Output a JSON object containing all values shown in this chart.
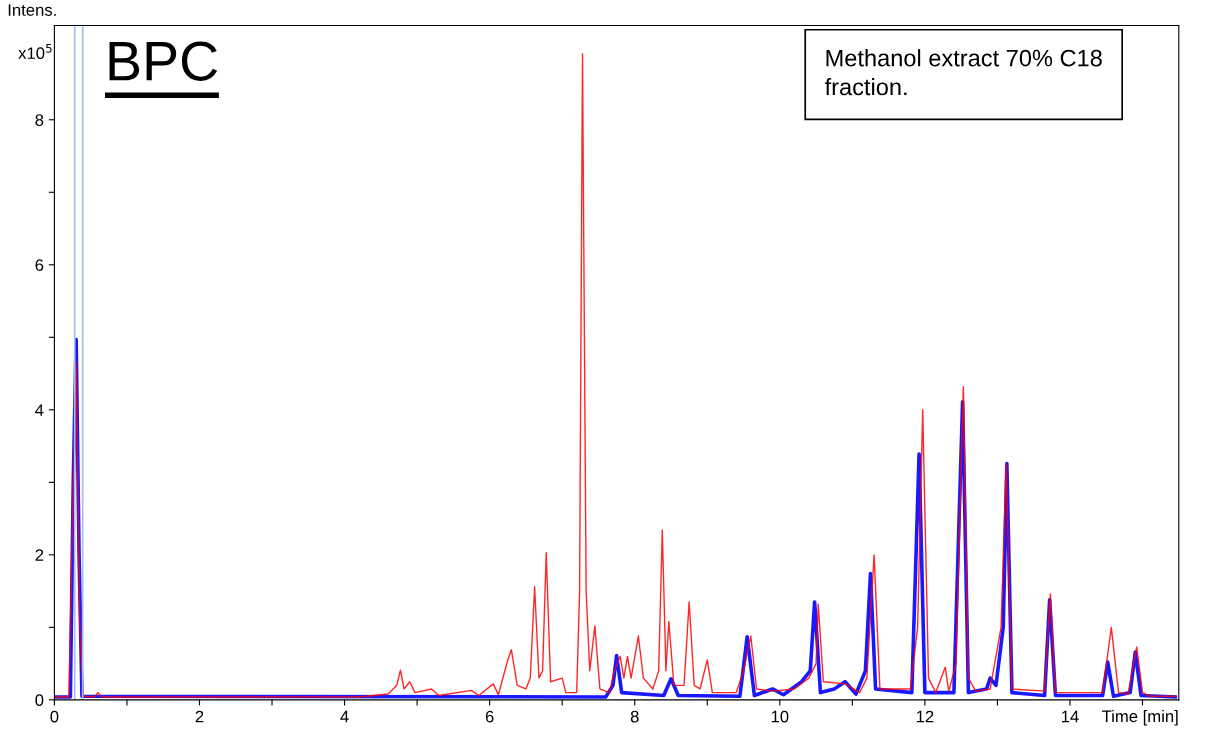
{
  "chart_data": {
    "type": "line",
    "xlabel": "Time [min]",
    "ylabel": "Intens.",
    "annotations": [
      "x10$^{5}$",
      "BPC",
      "Methanol extract 70% C18\nfraction."
    ],
    "xlim": [
      0,
      15.5
    ],
    "ylim": [
      0,
      9.3
    ],
    "xticks": [
      0,
      {
        "value": 1,
        "label": null
      },
      2,
      {
        "value": 3,
        "label": null
      },
      4,
      {
        "value": 5,
        "label": null
      },
      6,
      {
        "value": 7,
        "label": null
      },
      8,
      {
        "value": 9,
        "label": null
      },
      10,
      {
        "value": 11,
        "label": null
      },
      12,
      {
        "value": 13,
        "label": null
      },
      14,
      {
        "value": 15,
        "label": null
      }
    ],
    "yticks": [
      0,
      {
        "value": 1,
        "label": null
      },
      2,
      {
        "value": 3,
        "label": null
      },
      4,
      {
        "value": 5,
        "label": null
      },
      6,
      {
        "value": 7,
        "label": null
      },
      8
    ],
    "grid": false,
    "legend": false,
    "marker": "none",
    "line_style": "solid",
    "ref_lines": [
      {
        "axis": "x",
        "value": 0.28,
        "color": "#a0c0f0"
      },
      {
        "axis": "x",
        "value": 0.39,
        "color": "#a0c0f0"
      }
    ],
    "series": [
      {
        "color": "#0000ff",
        "x": [
          0,
          0.22,
          0.26,
          0.3,
          0.34,
          0.38,
          7.6,
          7.7,
          7.75,
          7.82,
          8.4,
          8.5,
          8.6,
          9.45,
          9.55,
          9.65,
          9.9,
          10.05,
          10.3,
          10.42,
          10.48,
          10.56,
          10.75,
          10.9,
          11.05,
          11.18,
          11.25,
          11.32,
          11.82,
          11.92,
          12.0,
          12.4,
          12.52,
          12.6,
          12.85,
          12.9,
          12.98,
          13.08,
          13.13,
          13.2,
          13.65,
          13.72,
          13.8,
          14.45,
          14.52,
          14.6,
          14.83,
          14.9,
          14.98,
          15.45
        ],
        "values": [
          0.04,
          0.04,
          3.0,
          4.97,
          2.0,
          0.05,
          0.04,
          0.2,
          0.61,
          0.1,
          0.06,
          0.29,
          0.06,
          0.05,
          0.87,
          0.06,
          0.15,
          0.07,
          0.25,
          0.4,
          1.35,
          0.1,
          0.15,
          0.25,
          0.08,
          0.4,
          1.74,
          0.15,
          0.1,
          3.39,
          0.1,
          0.1,
          4.11,
          0.1,
          0.15,
          0.3,
          0.2,
          1.0,
          3.26,
          0.1,
          0.06,
          1.38,
          0.06,
          0.06,
          0.52,
          0.05,
          0.1,
          0.66,
          0.06,
          0.04
        ]
      },
      {
        "color": "#ff0000",
        "x": [
          0,
          0.2,
          0.25,
          0.3,
          0.35,
          0.4,
          0.55,
          0.6,
          0.65,
          4.2,
          4.6,
          4.72,
          4.77,
          4.82,
          4.9,
          4.97,
          5.2,
          5.3,
          5.75,
          5.85,
          6.05,
          6.12,
          6.25,
          6.3,
          6.38,
          6.5,
          6.56,
          6.62,
          6.68,
          6.73,
          6.78,
          6.84,
          7.0,
          7.05,
          7.2,
          7.24,
          7.28,
          7.33,
          7.38,
          7.45,
          7.52,
          7.65,
          7.72,
          7.8,
          7.85,
          7.9,
          7.95,
          8.05,
          8.12,
          8.25,
          8.33,
          8.38,
          8.43,
          8.47,
          8.54,
          8.68,
          8.75,
          8.82,
          8.9,
          9.0,
          9.07,
          9.4,
          9.5,
          9.6,
          9.68,
          9.9,
          10.2,
          10.4,
          10.5,
          10.53,
          10.6,
          10.9,
          11.1,
          11.2,
          11.3,
          11.38,
          11.8,
          11.9,
          11.97,
          12.05,
          12.15,
          12.28,
          12.33,
          12.43,
          12.53,
          12.6,
          12.7,
          12.9,
          13.05,
          13.12,
          13.2,
          13.65,
          13.73,
          13.8,
          14.45,
          14.57,
          14.67,
          14.8,
          14.92,
          15.0,
          15.1,
          15.45
        ],
        "values": [
          0.04,
          0.04,
          2.5,
          4.66,
          1.0,
          0.05,
          0.04,
          0.1,
          0.04,
          0.04,
          0.08,
          0.2,
          0.41,
          0.15,
          0.25,
          0.1,
          0.15,
          0.06,
          0.13,
          0.06,
          0.22,
          0.07,
          0.55,
          0.69,
          0.2,
          0.15,
          0.3,
          1.56,
          0.3,
          0.4,
          2.03,
          0.25,
          0.3,
          0.1,
          0.1,
          1.5,
          8.91,
          1.5,
          0.4,
          1.02,
          0.15,
          0.1,
          0.4,
          0.6,
          0.3,
          0.6,
          0.3,
          0.88,
          0.3,
          0.15,
          0.4,
          2.34,
          0.4,
          1.08,
          0.2,
          0.2,
          1.35,
          0.2,
          0.15,
          0.55,
          0.1,
          0.1,
          0.4,
          0.88,
          0.15,
          0.12,
          0.15,
          0.3,
          0.5,
          1.32,
          0.25,
          0.22,
          0.1,
          0.3,
          2.0,
          0.15,
          0.15,
          1.0,
          4.0,
          0.3,
          0.1,
          0.45,
          0.12,
          0.5,
          4.32,
          0.3,
          0.12,
          0.15,
          1.0,
          3.26,
          0.15,
          0.12,
          1.46,
          0.1,
          0.1,
          1.0,
          0.1,
          0.08,
          0.73,
          0.1,
          0.05,
          0.05
        ]
      }
    ]
  }
}
